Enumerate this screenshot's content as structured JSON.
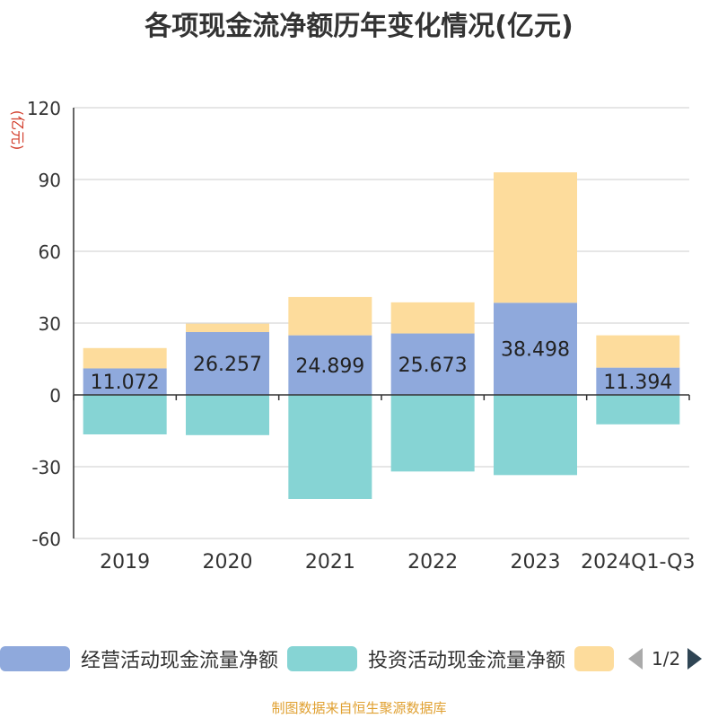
{
  "title": "各项现金流净额历年变化情况(亿元)",
  "source": "制图数据来自恒生聚源数据库",
  "legend": {
    "items": [
      {
        "label": "经营活动现金流量净额",
        "color": "#8fa9dc"
      },
      {
        "label": "投资活动现金流量净额",
        "color": "#86d4d4"
      },
      {
        "label": "",
        "color": "#fddc9c"
      }
    ],
    "page": "1/2"
  },
  "chart_data": {
    "type": "bar",
    "stacked": true,
    "categories": [
      "2019",
      "2020",
      "2021",
      "2022",
      "2023",
      "2024Q1-Q3"
    ],
    "ylabel": "(亿元)",
    "ylim": [
      -60,
      120
    ],
    "yticks": [
      "-60",
      "-30",
      "0",
      "30",
      "60",
      "90",
      "120"
    ],
    "grid": true,
    "legend_position": "bottom",
    "series": [
      {
        "name": "经营活动现金流量净额",
        "color": "#8fa9dc",
        "values": [
          11.072,
          26.257,
          24.899,
          25.673,
          38.498,
          11.394
        ],
        "labels": [
          "11.072",
          "26.257",
          "24.899",
          "25.673",
          "38.498",
          "11.394"
        ]
      },
      {
        "name": "投资活动现金流量净额",
        "color": "#86d4d4",
        "values": [
          -16.5,
          -16.8,
          -43.5,
          -32.0,
          -33.5,
          -12.3
        ]
      },
      {
        "color": "#fddc9c",
        "values": [
          8.5,
          3.5,
          16.0,
          13.0,
          54.5,
          13.5
        ]
      }
    ]
  }
}
